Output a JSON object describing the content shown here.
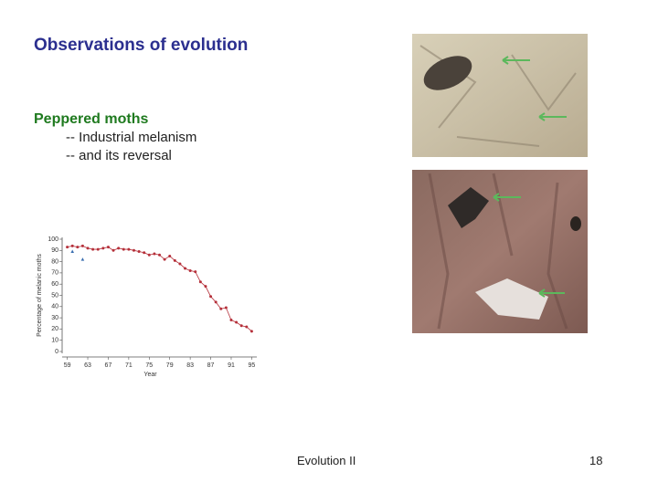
{
  "title": "Observations of evolution",
  "subtitle": "Peppered moths",
  "bullets": [
    "-- Industrial melanism",
    "-- and its reversal"
  ],
  "footer": {
    "left": "Evolution II",
    "page": "18"
  },
  "chart_data": {
    "type": "line",
    "xlabel": "Year",
    "ylabel": "Percentage of melanic moths",
    "xlim": [
      58,
      96
    ],
    "ylim": [
      0,
      100
    ],
    "xticks": [
      59,
      63,
      67,
      71,
      75,
      79,
      83,
      87,
      91,
      95
    ],
    "yticks": [
      0,
      10,
      20,
      30,
      40,
      50,
      60,
      70,
      80,
      90,
      100
    ],
    "series": [
      {
        "color": "#b5303a",
        "x": [
          59,
          60,
          61,
          62,
          63,
          64,
          65,
          66,
          67,
          68,
          69,
          70,
          71,
          72,
          73,
          74,
          75,
          76,
          77,
          78,
          79,
          80,
          81,
          82,
          83,
          84,
          85,
          86,
          87,
          88,
          89,
          90,
          91,
          92,
          93,
          94,
          95
        ],
        "values": [
          93,
          94,
          93,
          94,
          92,
          91,
          91,
          92,
          93,
          90,
          92,
          91,
          91,
          90,
          89,
          88,
          86,
          87,
          86,
          82,
          85,
          81,
          78,
          74,
          72,
          71,
          62,
          58,
          49,
          44,
          38,
          39,
          28,
          26,
          23,
          22,
          18
        ]
      },
      {
        "type": "scatter",
        "color": "#3a6fb0",
        "x": [
          60,
          62
        ],
        "values": [
          89,
          82
        ]
      }
    ]
  }
}
